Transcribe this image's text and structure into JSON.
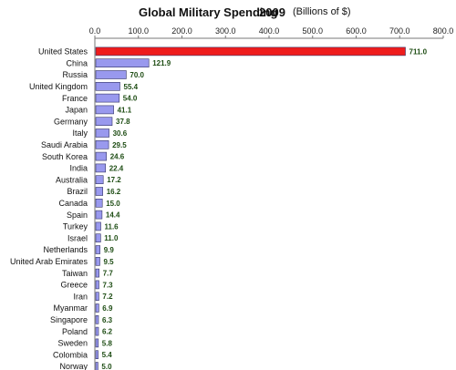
{
  "chart_data": {
    "type": "bar",
    "orientation": "horizontal",
    "title": "Global Military Spending",
    "year": "2009",
    "unit": "(Billions of $)",
    "xlim": [
      0,
      800
    ],
    "xticks": [
      "0.0",
      "100.0",
      "200.0",
      "300.0",
      "400.0",
      "500.0",
      "600.0",
      "700.0",
      "800.0"
    ],
    "grid": false,
    "legend": "none",
    "categories": [
      "United States",
      "China",
      "Russia",
      "United Kingdom",
      "France",
      "Japan",
      "Germany",
      "Italy",
      "Saudi Arabia",
      "South Korea",
      "India",
      "Australia",
      "Brazil",
      "Canada",
      "Spain",
      "Turkey",
      "Israel",
      "Netherlands",
      "United Arab Emirates",
      "Taiwan",
      "Greece",
      "Iran",
      "Myanmar",
      "Singapore",
      "Poland",
      "Sweden",
      "Colombia",
      "Norway"
    ],
    "values": [
      711.0,
      121.9,
      70.0,
      55.4,
      54.0,
      41.1,
      37.8,
      30.6,
      29.5,
      24.6,
      22.4,
      17.2,
      16.2,
      15.0,
      14.4,
      11.6,
      11.0,
      9.9,
      9.5,
      7.7,
      7.3,
      7.2,
      6.9,
      6.3,
      6.2,
      5.8,
      5.4,
      5.0
    ],
    "value_labels": [
      "711.0",
      "121.9",
      "70.0",
      "55.4",
      "54.0",
      "41.1",
      "37.8",
      "30.6",
      "29.5",
      "24.6",
      "22.4",
      "17.2",
      "16.2",
      "15.0",
      "14.4",
      "11.6",
      "11.0",
      "9.9",
      "9.5",
      "7.7",
      "7.3",
      "7.2",
      "6.9",
      "6.3",
      "6.2",
      "5.8",
      "5.4",
      "5.0"
    ],
    "colors": {
      "highlight_bar": "#ee1c1c",
      "bar": "#9999ee",
      "bar_stroke": "#333366",
      "value_label": "#1e4d14",
      "axis": "#777777"
    }
  }
}
